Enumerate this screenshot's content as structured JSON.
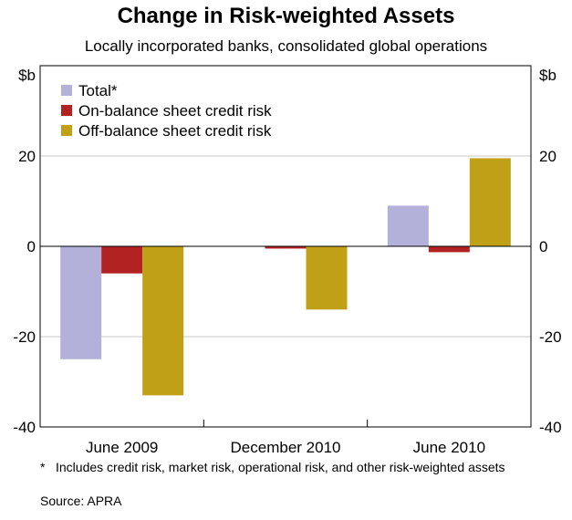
{
  "chart_data": {
    "type": "bar",
    "title": "Change in Risk-weighted Assets",
    "subtitle": "Locally incorporated banks, consolidated global operations",
    "ylabel": "$b",
    "ylabel_right": "$b",
    "ylim": [
      -40,
      40
    ],
    "yticks": [
      -40,
      -20,
      0,
      20
    ],
    "categories": [
      "June 2009",
      "December 2010",
      "June 2010"
    ],
    "series": [
      {
        "name": "Total*",
        "color": "#b3b0d9",
        "values": [
          -25,
          0,
          9
        ]
      },
      {
        "name": "On-balance sheet credit risk",
        "color": "#b22222",
        "values": [
          -6,
          -0.5,
          -1.3
        ]
      },
      {
        "name": "Off-balance sheet credit risk",
        "color": "#bfa016",
        "values": [
          -33,
          -14,
          19.5
        ]
      }
    ],
    "legend_position": "top-left",
    "grid": true
  },
  "footnote": {
    "marker": "*",
    "text": "Includes credit risk, market risk, operational risk, and other risk-weighted assets"
  },
  "source": "Source: APRA"
}
